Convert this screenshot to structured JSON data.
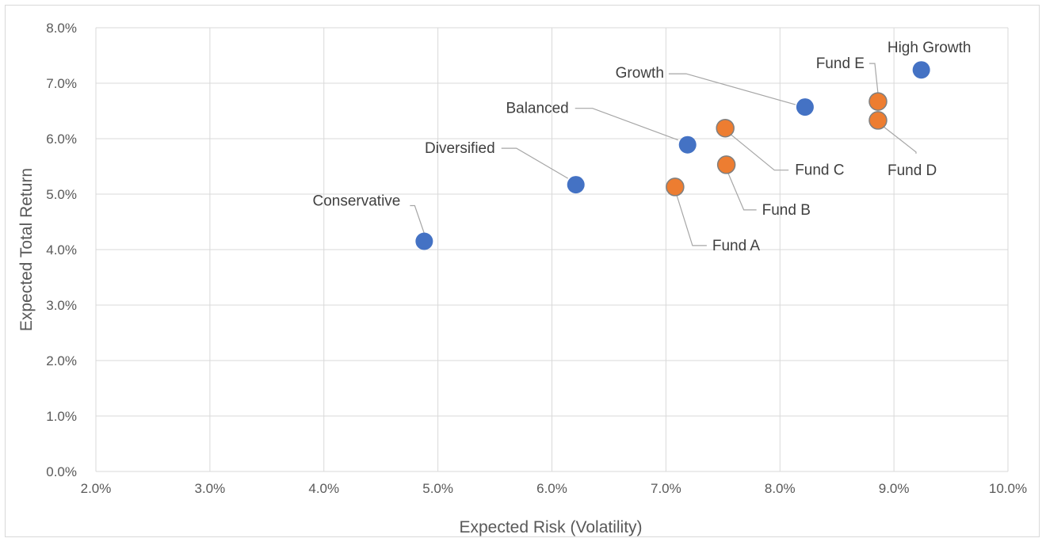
{
  "chart_data": {
    "type": "scatter",
    "title": "",
    "xlabel": "Expected Risk (Volatility)",
    "ylabel": "Expected Total Return",
    "xlim": [
      2.0,
      10.0
    ],
    "ylim": [
      0.0,
      8.0
    ],
    "x_ticks": [
      "2.0%",
      "3.0%",
      "4.0%",
      "5.0%",
      "6.0%",
      "7.0%",
      "8.0%",
      "9.0%",
      "10.0%"
    ],
    "y_ticks": [
      "0.0%",
      "1.0%",
      "2.0%",
      "3.0%",
      "4.0%",
      "5.0%",
      "6.0%",
      "7.0%",
      "8.0%"
    ],
    "grid": true,
    "legend": "none",
    "colors": {
      "portfolio": "#4472c4",
      "fund": "#ed7d31",
      "fund_outline": "#7f7f7f"
    },
    "series": [
      {
        "color_key": "portfolio",
        "points": [
          {
            "label": "Conservative",
            "x": 4.88,
            "y": 4.15
          },
          {
            "label": "Diversified",
            "x": 6.21,
            "y": 5.17
          },
          {
            "label": "Balanced",
            "x": 7.19,
            "y": 5.89
          },
          {
            "label": "Growth",
            "x": 8.22,
            "y": 6.57
          },
          {
            "label": "High Growth",
            "x": 9.24,
            "y": 7.24
          }
        ]
      },
      {
        "color_key": "fund",
        "points": [
          {
            "label": "Fund A",
            "x": 7.08,
            "y": 5.13
          },
          {
            "label": "Fund B",
            "x": 7.53,
            "y": 5.53
          },
          {
            "label": "Fund C",
            "x": 7.52,
            "y": 6.19
          },
          {
            "label": "Fund D",
            "x": 8.86,
            "y": 6.33
          },
          {
            "label": "Fund E",
            "x": 8.86,
            "y": 6.67
          }
        ]
      }
    ]
  }
}
